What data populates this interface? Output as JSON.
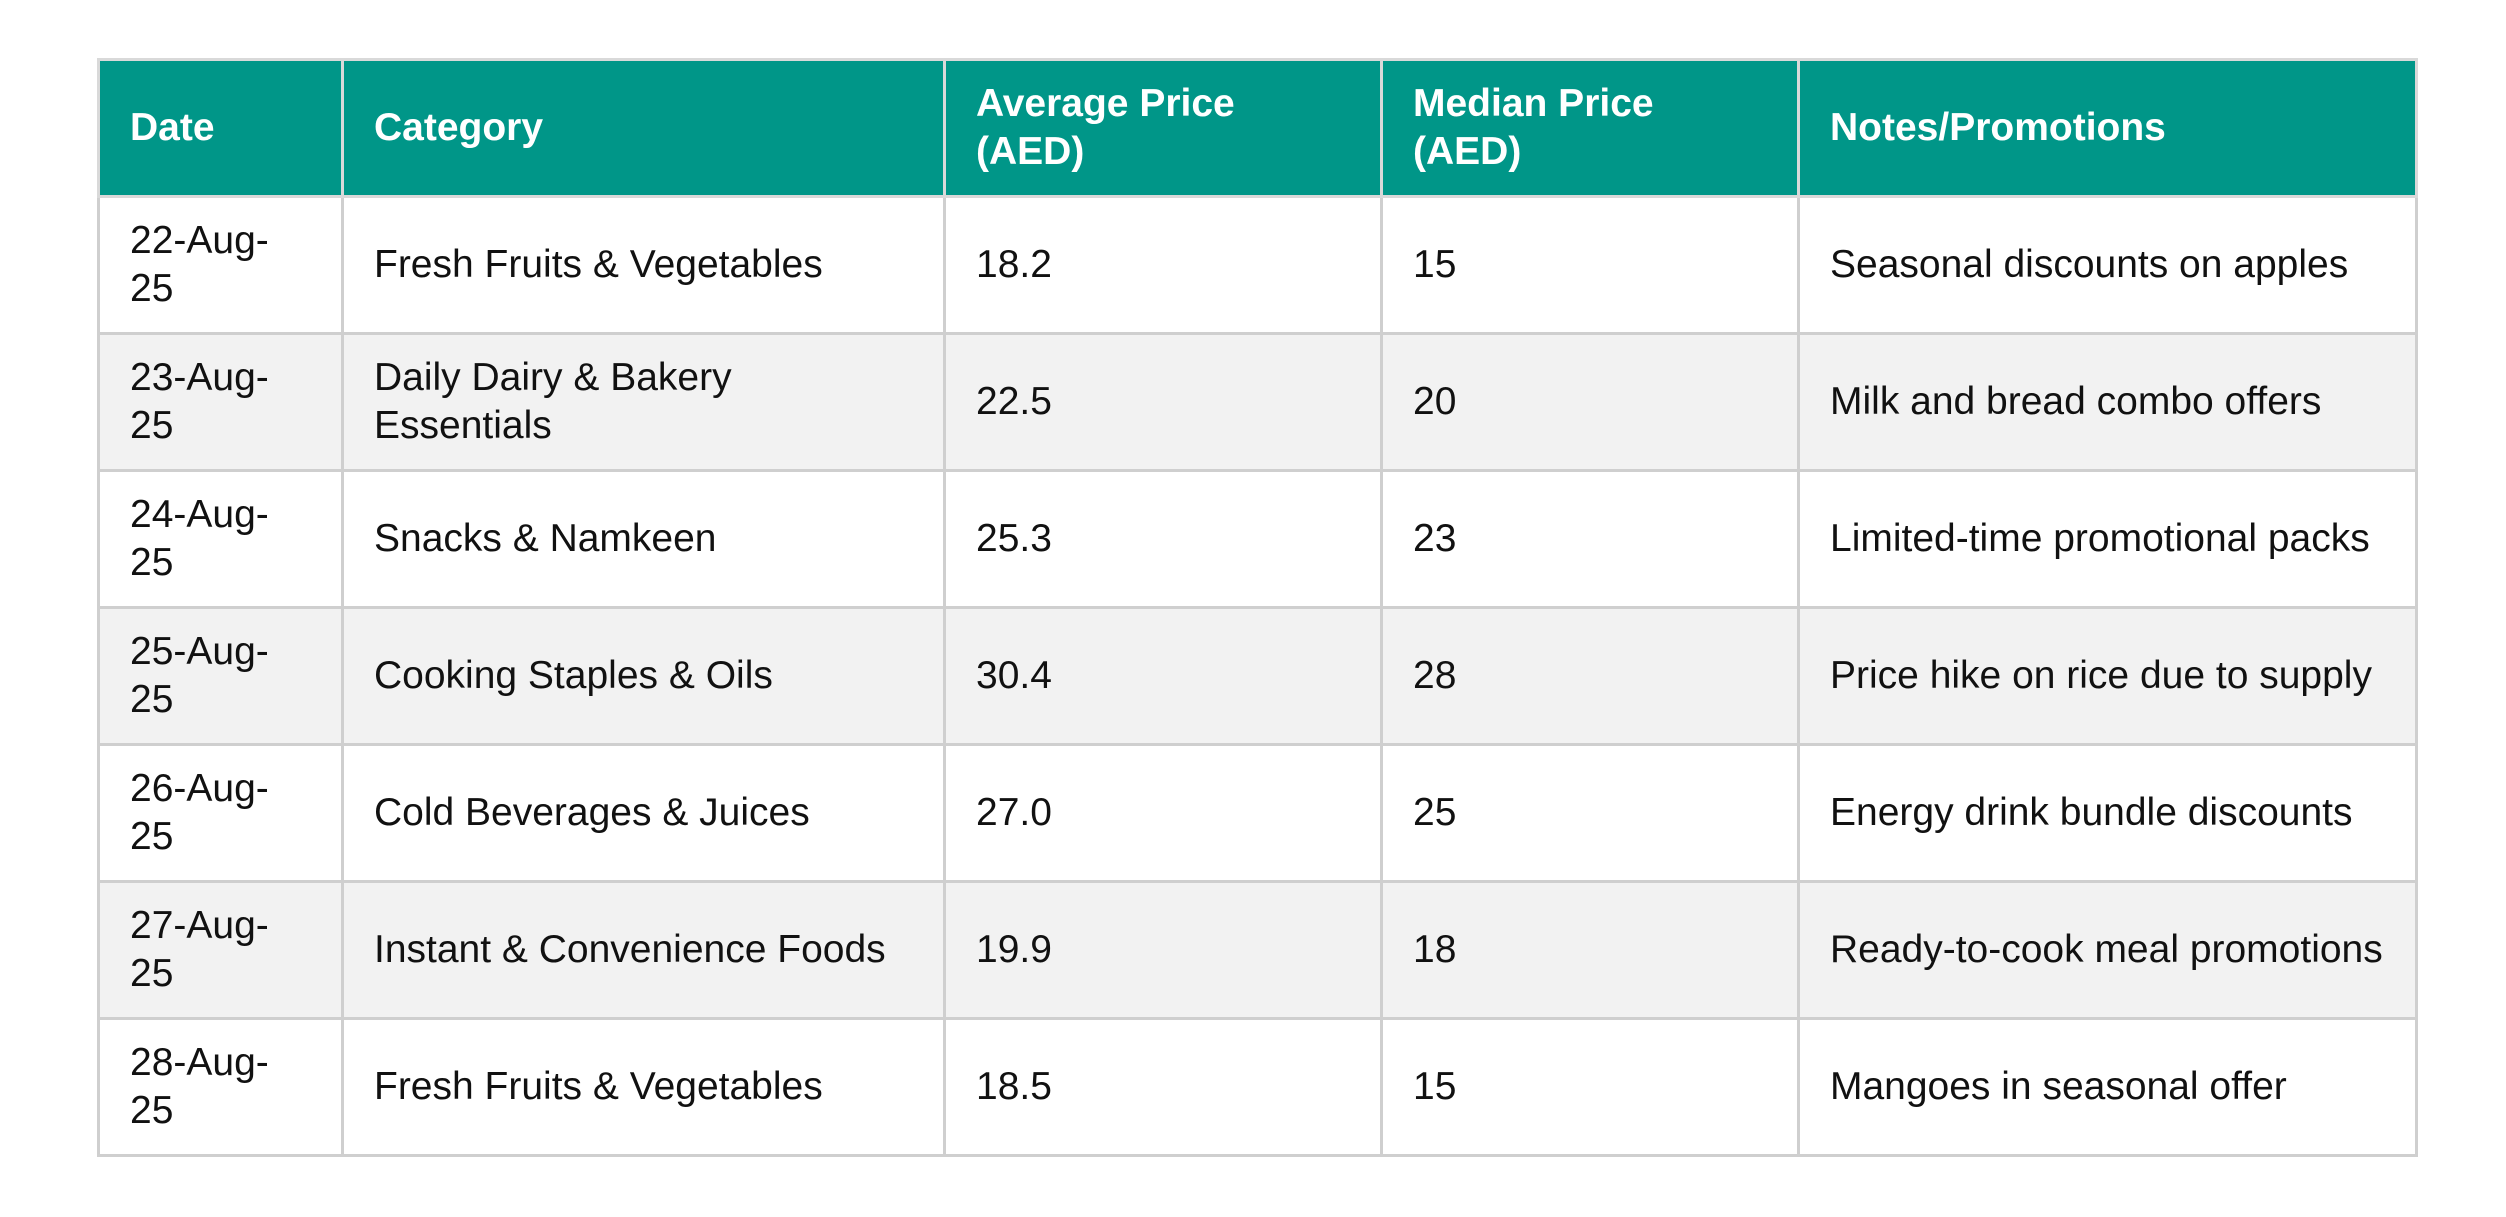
{
  "table": {
    "headers": [
      "Date",
      "Category",
      "Average Price (AED)",
      "Median Price (AED)",
      "Notes/Promotions"
    ],
    "rows": [
      [
        "22-Aug-25",
        "Fresh Fruits & Vegetables",
        "18.2",
        "15",
        "Seasonal discounts on apples"
      ],
      [
        "23-Aug-25",
        "Daily Dairy & Bakery Essentials",
        "22.5",
        "20",
        "Milk and bread combo offers"
      ],
      [
        "24-Aug-25",
        "Snacks & Namkeen",
        "25.3",
        "23",
        "Limited-time promotional packs"
      ],
      [
        "25-Aug-25",
        "Cooking Staples & Oils",
        "30.4",
        "28",
        "Price hike on rice due to supply"
      ],
      [
        "26-Aug-25",
        "Cold Beverages & Juices",
        "27.0",
        "25",
        "Energy drink bundle discounts"
      ],
      [
        "27-Aug-25",
        "Instant & Convenience Foods",
        "19.9",
        "18",
        "Ready-to-cook meal promotions"
      ],
      [
        "28-Aug-25",
        "Fresh Fruits & Vegetables",
        "18.5",
        "15",
        "Mangoes in seasonal offer"
      ]
    ]
  },
  "colors": {
    "header_bg": "#009688",
    "header_text": "#ffffff",
    "row_alt_bg": "#f2f2f2",
    "border": "#cfcfcf"
  }
}
